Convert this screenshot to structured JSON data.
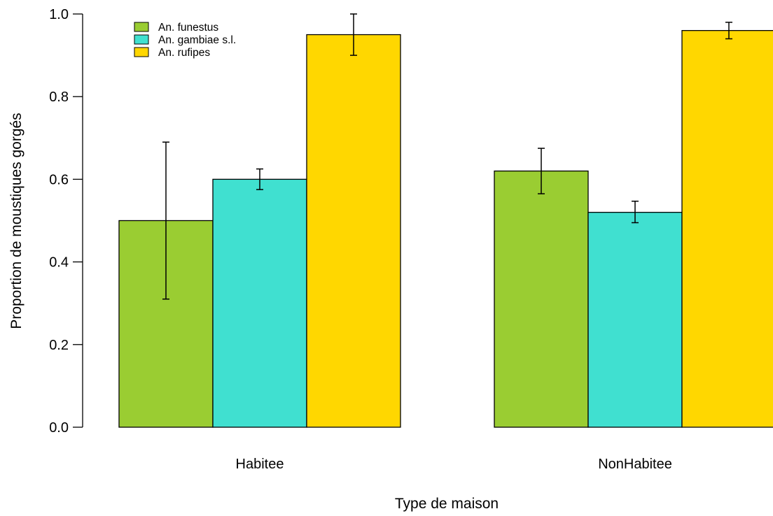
{
  "chart_data": {
    "type": "bar",
    "title": "",
    "xlabel": "Type de maison",
    "ylabel": "Proportion de moustiques gorgés",
    "ylim": [
      0,
      1
    ],
    "yticks": [
      "0.0",
      "0.2",
      "0.4",
      "0.6",
      "0.8",
      "1.0"
    ],
    "categories": [
      "Habitee",
      "NonHabitee"
    ],
    "series": [
      {
        "name": "An. funestus",
        "color": "#9ACD32",
        "values": [
          0.5,
          0.62
        ],
        "err_low": [
          0.31,
          0.565
        ],
        "err_high": [
          0.69,
          0.675
        ]
      },
      {
        "name": "An. gambiae s.l.",
        "color": "#40E0D0",
        "values": [
          0.6,
          0.52
        ],
        "err_low": [
          0.575,
          0.495
        ],
        "err_high": [
          0.625,
          0.547
        ]
      },
      {
        "name": "An. rufipes",
        "color": "#FFD700",
        "values": [
          0.95,
          0.96
        ],
        "err_low": [
          0.9,
          0.94
        ],
        "err_high": [
          1.0,
          0.98
        ]
      }
    ],
    "legend_position": "top-left",
    "grid": false
  }
}
